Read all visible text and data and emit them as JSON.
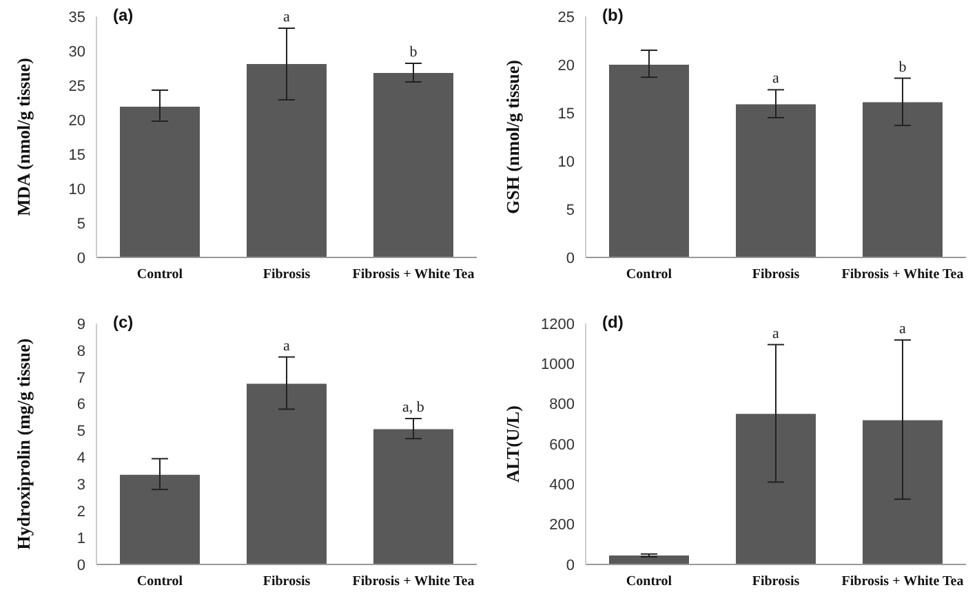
{
  "chart_data": [
    {
      "type": "bar",
      "title": "(a)",
      "ylabel": "MDA (nmol/g tissue)",
      "categories": [
        "Control",
        "Fibrosis",
        "Fibrosis + White Tea"
      ],
      "values": [
        21.9,
        28.1,
        26.8
      ],
      "errors": [
        [
          19.8,
          24.3
        ],
        [
          22.9,
          33.3
        ],
        [
          25.5,
          28.2
        ]
      ],
      "color": "#595959",
      "ylim": [
        0,
        35
      ],
      "yticks": [
        0,
        5,
        10,
        15,
        20,
        25,
        30,
        35
      ],
      "grid": false,
      "legend": false,
      "annotations": [
        {
          "text": "a",
          "x": "Fibrosis",
          "y": 33.3
        },
        {
          "text": "b",
          "x": "Fibrosis + White Tea",
          "y": 28.2
        }
      ]
    },
    {
      "type": "bar",
      "title": "(b)",
      "ylabel": "GSH (nmol/g tissue)",
      "categories": [
        "Control",
        "Fibrosis",
        "Fibrosis + White Tea"
      ],
      "values": [
        20.0,
        15.9,
        16.1
      ],
      "errors": [
        [
          18.7,
          21.5
        ],
        [
          14.5,
          17.4
        ],
        [
          13.7,
          18.6
        ]
      ],
      "color": "#595959",
      "ylim": [
        0,
        25
      ],
      "yticks": [
        0,
        5,
        10,
        15,
        20,
        25
      ],
      "grid": false,
      "legend": false,
      "annotations": [
        {
          "text": "a",
          "x": "Fibrosis",
          "y": 17.4
        },
        {
          "text": "b",
          "x": "Fibrosis + White Tea",
          "y": 18.6
        }
      ]
    },
    {
      "type": "bar",
      "title": "(c)",
      "ylabel": "Hydroxiprolin (mg/g tissue)",
      "categories": [
        "Control",
        "Fibrosis",
        "Fibrosis + White Tea"
      ],
      "values": [
        3.35,
        6.75,
        5.05
      ],
      "errors": [
        [
          2.8,
          3.95
        ],
        [
          5.8,
          7.75
        ],
        [
          4.7,
          5.45
        ]
      ],
      "color": "#595959",
      "ylim": [
        0,
        9
      ],
      "yticks": [
        0,
        1,
        2,
        3,
        4,
        5,
        6,
        7,
        8,
        9
      ],
      "grid": false,
      "legend": false,
      "annotations": [
        {
          "text": "a",
          "x": "Fibrosis",
          "y": 7.75
        },
        {
          "text": "a, b",
          "x": "Fibrosis + White Tea",
          "y": 5.45
        }
      ]
    },
    {
      "type": "bar",
      "title": "(d)",
      "ylabel": "ALT(U/L)",
      "categories": [
        "Control",
        "Fibrosis",
        "Fibrosis + White Tea"
      ],
      "values": [
        45,
        750,
        718
      ],
      "errors": [
        [
          38,
          52
        ],
        [
          410,
          1095
        ],
        [
          325,
          1118
        ]
      ],
      "color": "#595959",
      "ylim": [
        0,
        1200
      ],
      "yticks": [
        0,
        200,
        400,
        600,
        800,
        1000,
        1200
      ],
      "grid": false,
      "legend": false,
      "annotations": [
        {
          "text": "a",
          "x": "Fibrosis",
          "y": 1095
        },
        {
          "text": "a",
          "x": "Fibrosis + White Tea",
          "y": 1118
        }
      ]
    }
  ]
}
